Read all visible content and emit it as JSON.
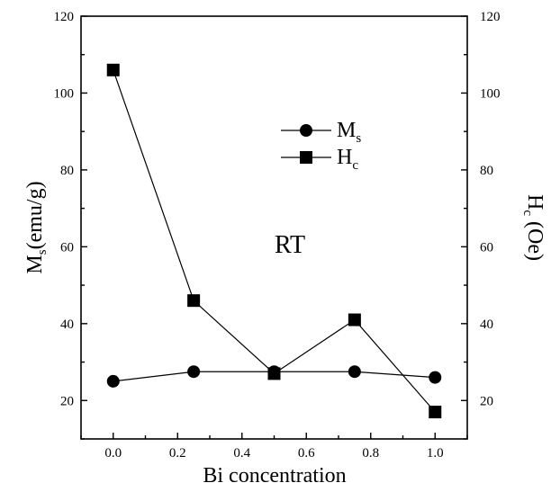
{
  "chart_data": {
    "type": "line",
    "xlabel": "Bi concentration",
    "ylabel_left": {
      "main": "M",
      "sub": "s",
      "tail": "(emu/g)"
    },
    "ylabel_right": {
      "main": "H",
      "sub": "c",
      "tail": " (Oe)"
    },
    "xlim": [
      -0.1,
      1.1
    ],
    "ylim_left": [
      10,
      120
    ],
    "ylim_right": [
      10,
      120
    ],
    "x_ticks": [
      "0.0",
      "0.2",
      "0.4",
      "0.6",
      "0.8",
      "1.0"
    ],
    "x_tick_values": [
      0.0,
      0.2,
      0.4,
      0.6,
      0.8,
      1.0
    ],
    "y_left_ticks": [
      "20",
      "40",
      "60",
      "80",
      "100",
      "120"
    ],
    "y_left_tick_values": [
      20,
      40,
      60,
      80,
      100,
      120
    ],
    "y_right_ticks": [
      "20",
      "40",
      "60",
      "80",
      "100",
      "120"
    ],
    "y_right_tick_values": [
      20,
      40,
      60,
      80,
      100,
      120
    ],
    "annotation": "RT",
    "legend_position": "upper-center",
    "series": [
      {
        "name": "Ms",
        "legend_main": "M",
        "legend_sub": "s",
        "marker": "circle",
        "axis": "left",
        "x": [
          0.0,
          0.25,
          0.5,
          0.75,
          1.0
        ],
        "y": [
          25,
          27.5,
          27.5,
          27.5,
          26
        ]
      },
      {
        "name": "Hc",
        "legend_main": "H",
        "legend_sub": "c",
        "marker": "square",
        "axis": "right",
        "x": [
          0.0,
          0.25,
          0.5,
          0.75,
          1.0
        ],
        "y": [
          106,
          46,
          27,
          41,
          17
        ]
      }
    ]
  }
}
